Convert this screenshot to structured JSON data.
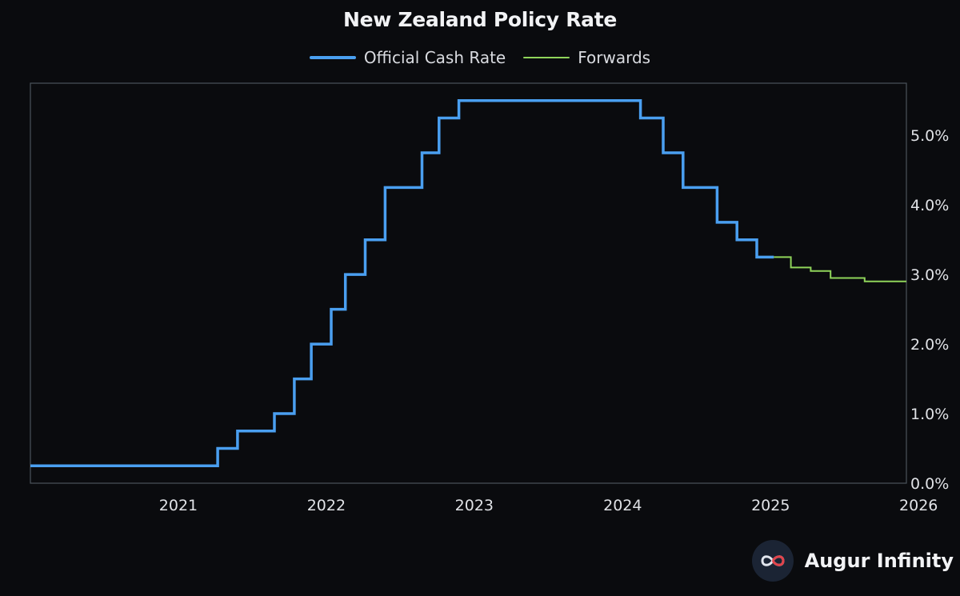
{
  "chart_data": {
    "type": "line",
    "title": "New Zealand Policy Rate",
    "xlabel": "",
    "ylabel": "",
    "x_ticks": [
      "2021",
      "2022",
      "2023",
      "2024",
      "2025",
      "2026"
    ],
    "y_ticks": [
      "0.0%",
      "1.0%",
      "2.0%",
      "3.0%",
      "4.0%",
      "5.0%"
    ],
    "ylim": [
      0,
      5.75
    ],
    "xlim": [
      "2020-07-01",
      "2026-06-01"
    ],
    "grid": false,
    "legend_position": "top-center",
    "series": [
      {
        "name": "Official Cash Rate",
        "style": "step",
        "color": "#4a9ff0",
        "points": [
          [
            "2020-07-01",
            0.25
          ],
          [
            "2021-10-06",
            0.5
          ],
          [
            "2021-11-24",
            0.75
          ],
          [
            "2022-02-23",
            1.0
          ],
          [
            "2022-04-13",
            1.5
          ],
          [
            "2022-05-25",
            2.0
          ],
          [
            "2022-07-13",
            2.5
          ],
          [
            "2022-08-17",
            3.0
          ],
          [
            "2022-10-05",
            3.5
          ],
          [
            "2022-11-23",
            4.25
          ],
          [
            "2023-02-22",
            4.75
          ],
          [
            "2023-04-05",
            5.25
          ],
          [
            "2023-05-24",
            5.5
          ],
          [
            "2024-08-14",
            5.25
          ],
          [
            "2024-10-09",
            4.75
          ],
          [
            "2024-11-27",
            4.25
          ],
          [
            "2025-02-19",
            3.75
          ],
          [
            "2025-04-09",
            3.5
          ],
          [
            "2025-05-28",
            3.25
          ],
          [
            "2025-07-09",
            3.25
          ]
        ]
      },
      {
        "name": "Forwards",
        "style": "step",
        "color": "#8fd45a",
        "points": [
          [
            "2025-07-09",
            3.25
          ],
          [
            "2025-08-20",
            3.1
          ],
          [
            "2025-10-08",
            3.05
          ],
          [
            "2025-11-26",
            2.95
          ],
          [
            "2026-02-18",
            2.9
          ],
          [
            "2026-06-01",
            2.9
          ]
        ]
      }
    ]
  },
  "brand": {
    "name": "Augur Infinity",
    "icon": "infinity-logo-icon"
  },
  "colors": {
    "background": "#0a0b0e",
    "frame": "#4b545c",
    "text": "#e0e2e6"
  }
}
